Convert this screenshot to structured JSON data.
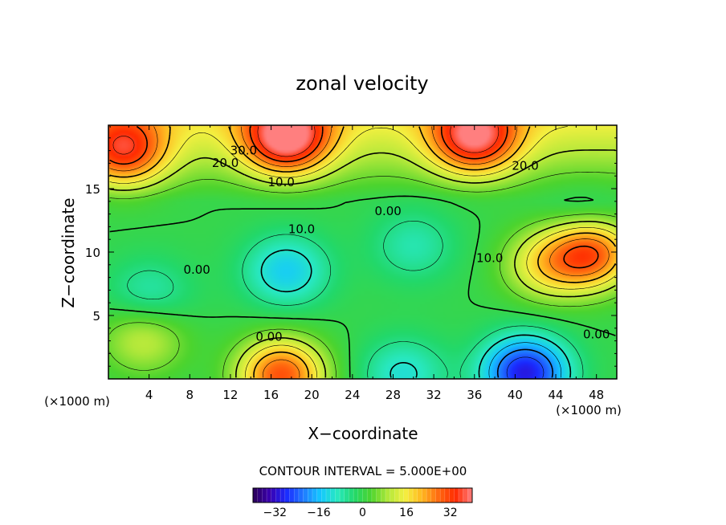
{
  "chart_data": {
    "type": "heatmap",
    "title": "zonal velocity",
    "xlabel": "X−coordinate",
    "ylabel": "Z−coordinate",
    "x_unit_label": "(×1000 m)",
    "z_unit_label": "(×1000 m)",
    "xlim": [
      0,
      50
    ],
    "ylim": [
      0,
      20
    ],
    "x_ticks": [
      "4",
      "8",
      "12",
      "16",
      "20",
      "24",
      "28",
      "32",
      "36",
      "40",
      "44",
      "48"
    ],
    "y_ticks": [
      "5",
      "10",
      "15"
    ],
    "contour_interval_text": "CONTOUR INTERVAL = 5.000E+00",
    "contour_interval": 5.0,
    "contour_labels": [
      {
        "text": "30.0",
        "x": 13.3,
        "z": 17.7
      },
      {
        "text": "20.0",
        "x": 11.5,
        "z": 16.7
      },
      {
        "text": "20.0",
        "x": 41.0,
        "z": 16.5
      },
      {
        "text": "10.0",
        "x": 17.0,
        "z": 15.2
      },
      {
        "text": "0.00",
        "x": 27.5,
        "z": 12.9
      },
      {
        "text": "10.0",
        "x": 19.0,
        "z": 11.5
      },
      {
        "text": "10.0",
        "x": 37.5,
        "z": 9.2
      },
      {
        "text": "0.00",
        "x": 8.7,
        "z": 8.3
      },
      {
        "text": "0.00",
        "x": 15.8,
        "z": 3.0
      },
      {
        "text": "0.00",
        "x": 48.0,
        "z": 3.2
      }
    ],
    "field_extrema": [
      {
        "x": 17.5,
        "z": 19.0,
        "value": 34
      },
      {
        "x": 17.0,
        "z": 0.3,
        "value": 30
      },
      {
        "x": 1.5,
        "z": 18.0,
        "value": 26
      },
      {
        "x": 47.5,
        "z": 10.0,
        "value": 30
      },
      {
        "x": 43.0,
        "z": 9.0,
        "value": 15
      },
      {
        "x": 3.5,
        "z": 3.3,
        "value": 12
      },
      {
        "x": 36.0,
        "z": 19.0,
        "value": 30
      },
      {
        "x": 17.5,
        "z": 8.5,
        "value": -14
      },
      {
        "x": 30.0,
        "z": 10.5,
        "value": -8
      },
      {
        "x": 4.0,
        "z": 6.5,
        "value": -9
      },
      {
        "x": 41.0,
        "z": 0.5,
        "value": -30
      },
      {
        "x": 29.0,
        "z": 0.4,
        "value": -11
      },
      {
        "x": 47.0,
        "z": 12.5,
        "value": -6
      }
    ],
    "colorbar": {
      "min": -40,
      "max": 40,
      "ticks": [
        "−32",
        "−16",
        "0",
        "16",
        "32"
      ],
      "colors": [
        "#2a0056",
        "#3a00b0",
        "#1a2bff",
        "#1f7bff",
        "#14c8ff",
        "#28e8c0",
        "#22d86a",
        "#4cd42e",
        "#b0e83a",
        "#f4f040",
        "#ffb820",
        "#ff6a10",
        "#ff2a00",
        "#ff7f7f"
      ]
    }
  }
}
